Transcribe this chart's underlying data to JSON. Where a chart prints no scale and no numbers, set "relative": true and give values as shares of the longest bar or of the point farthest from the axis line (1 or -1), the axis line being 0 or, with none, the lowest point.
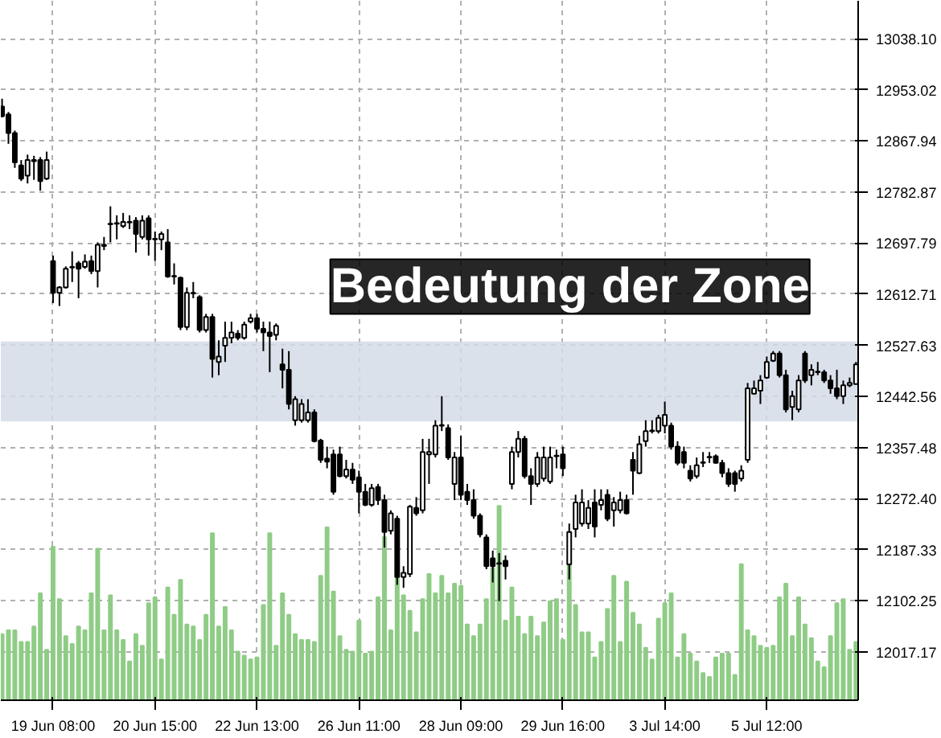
{
  "chart_data": [
    {
      "type": "candlestick",
      "categories": [
        null,
        null,
        null,
        null,
        null,
        null,
        null,
        null,
        "19 Jun 08:00",
        null,
        null,
        null,
        null,
        null,
        null,
        null,
        null,
        null,
        null,
        null,
        null,
        null,
        null,
        null,
        "20 Jun 15:00",
        null,
        null,
        null,
        null,
        null,
        null,
        null,
        null,
        null,
        null,
        null,
        null,
        null,
        null,
        null,
        "22 Jun 13:00",
        null,
        null,
        null,
        null,
        null,
        null,
        null,
        null,
        null,
        null,
        null,
        null,
        null,
        null,
        null,
        "26 Jun 11:00",
        null,
        null,
        null,
        null,
        null,
        null,
        null,
        null,
        null,
        null,
        null,
        null,
        null,
        null,
        null,
        "28 Jun 09:00",
        null,
        null,
        null,
        null,
        null,
        null,
        null,
        null,
        null,
        null,
        null,
        null,
        null,
        null,
        null,
        "29 Jun 16:00",
        null,
        null,
        null,
        null,
        null,
        null,
        null,
        null,
        null,
        null,
        null,
        null,
        null,
        null,
        null,
        "3 Jul 14:00",
        null,
        null,
        null,
        null,
        null,
        null,
        null,
        null,
        null,
        null,
        null,
        null,
        null,
        null,
        null,
        "5 Jul 12:00",
        null,
        null,
        null,
        null,
        null,
        null,
        null,
        null,
        null,
        null,
        null,
        null,
        null,
        null
      ],
      "ohlc": [
        [
          12925,
          12938,
          12907,
          12909
        ],
        [
          12912,
          12916,
          12863,
          12881
        ],
        [
          12881,
          12885,
          12823,
          12832
        ],
        [
          12827,
          12836,
          12801,
          12805
        ],
        [
          12810,
          12845,
          12797,
          12836
        ],
        [
          12834,
          12843,
          12803,
          12836
        ],
        [
          12836,
          12841,
          12785,
          12801
        ],
        [
          12805,
          12850,
          12803,
          12836
        ],
        [
          12668,
          12677,
          12598,
          12615
        ],
        [
          12615,
          12626,
          12593,
          12624
        ],
        [
          12624,
          12659,
          12622,
          12655
        ],
        [
          12657,
          12684,
          12633,
          12658
        ],
        [
          12664,
          12668,
          12606,
          12655
        ],
        [
          12658,
          12679,
          12655,
          12667
        ],
        [
          12668,
          12677,
          12646,
          12651
        ],
        [
          12651,
          12699,
          12624,
          12695
        ],
        [
          12695,
          12708,
          12686,
          12693
        ],
        [
          12729,
          12759,
          12699,
          12730
        ],
        [
          12730,
          12744,
          12704,
          12731
        ],
        [
          12726,
          12748,
          12723,
          12733
        ],
        [
          12733,
          12744,
          12721,
          12732
        ],
        [
          12735,
          12741,
          12682,
          12713
        ],
        [
          12708,
          12744,
          12704,
          12735
        ],
        [
          12739,
          12744,
          12677,
          12704
        ],
        [
          12704,
          12717,
          12668,
          12705
        ],
        [
          12704,
          12717,
          12686,
          12713
        ],
        [
          12699,
          12721,
          12640,
          12642
        ],
        [
          12642,
          12664,
          12629,
          12643
        ],
        [
          12640,
          12642,
          12553,
          12558
        ],
        [
          12558,
          12624,
          12553,
          12615
        ],
        [
          12615,
          12633,
          12606,
          12614
        ],
        [
          12608,
          12611,
          12549,
          12553
        ],
        [
          12553,
          12580,
          12549,
          12575
        ],
        [
          12575,
          12580,
          12474,
          12505
        ],
        [
          12500,
          12536,
          12478,
          12509
        ],
        [
          12527,
          12567,
          12500,
          12540
        ],
        [
          12540,
          12567,
          12531,
          12549
        ],
        [
          12547,
          12553,
          12536,
          12540
        ],
        [
          12540,
          12567,
          12537,
          12562
        ],
        [
          12567,
          12580,
          12564,
          12573
        ],
        [
          12573,
          12580,
          12549,
          12555
        ],
        [
          12555,
          12567,
          12518,
          12549
        ],
        [
          12549,
          12567,
          12483,
          12543
        ],
        [
          12545,
          12564,
          12536,
          12560
        ],
        [
          12496,
          12522,
          12456,
          12487
        ],
        [
          12487,
          12518,
          12421,
          12430
        ],
        [
          12403,
          12443,
          12394,
          12438
        ],
        [
          12403,
          12438,
          12399,
          12430
        ],
        [
          12403,
          12438,
          12399,
          12416
        ],
        [
          12416,
          12421,
          12366,
          12368
        ],
        [
          12369,
          12372,
          12332,
          12337
        ],
        [
          12339,
          12359,
          12323,
          12334
        ],
        [
          12346,
          12354,
          12279,
          12284
        ],
        [
          12346,
          12359,
          12308,
          12310
        ],
        [
          12310,
          12337,
          12306,
          12321
        ],
        [
          12321,
          12332,
          12297,
          12304
        ],
        [
          12308,
          12319,
          12248,
          12284
        ],
        [
          12284,
          12297,
          12260,
          12262
        ],
        [
          12262,
          12297,
          12259,
          12290
        ],
        [
          12292,
          12297,
          12262,
          12270
        ],
        [
          12270,
          12279,
          12191,
          12217
        ],
        [
          12219,
          12253,
          12213,
          12248
        ],
        [
          12239,
          12244,
          12129,
          12142
        ],
        [
          12142,
          12160,
          12124,
          12149
        ],
        [
          12147,
          12262,
          12142,
          12259
        ],
        [
          12257,
          12275,
          12244,
          12248
        ],
        [
          12253,
          12372,
          12248,
          12350
        ],
        [
          12346,
          12372,
          12297,
          12350
        ],
        [
          12346,
          12403,
          12341,
          12394
        ],
        [
          12394,
          12443,
          12385,
          12395
        ],
        [
          12390,
          12396,
          12337,
          12341
        ],
        [
          12297,
          12350,
          12270,
          12341
        ],
        [
          12341,
          12377,
          12270,
          12279
        ],
        [
          12284,
          12297,
          12262,
          12270
        ],
        [
          12270,
          12288,
          12239,
          12244
        ],
        [
          12244,
          12248,
          12208,
          12213
        ],
        [
          12208,
          12213,
          12155,
          12160
        ],
        [
          12173,
          12186,
          12133,
          12160
        ],
        [
          12164,
          12182,
          12102,
          12165
        ],
        [
          12169,
          12178,
          12138,
          12160
        ],
        [
          12297,
          12359,
          12288,
          12350
        ],
        [
          12350,
          12385,
          12341,
          12372
        ],
        [
          12372,
          12377,
          12306,
          12310
        ],
        [
          12310,
          12323,
          12262,
          12297
        ],
        [
          12297,
          12350,
          12292,
          12341
        ],
        [
          12306,
          12359,
          12301,
          12341
        ],
        [
          12301,
          12359,
          12297,
          12341
        ],
        [
          12343,
          12354,
          12323,
          12344
        ],
        [
          12346,
          12359,
          12310,
          12323
        ],
        [
          12163,
          12231,
          12138,
          12217
        ],
        [
          12222,
          12279,
          12208,
          12266
        ],
        [
          12231,
          12288,
          12226,
          12266
        ],
        [
          12231,
          12270,
          12222,
          12257
        ],
        [
          12266,
          12288,
          12208,
          12226
        ],
        [
          12262,
          12288,
          12253,
          12270
        ],
        [
          12279,
          12288,
          12235,
          12239
        ],
        [
          12253,
          12275,
          12226,
          12266
        ],
        [
          12253,
          12284,
          12248,
          12270
        ],
        [
          12270,
          12279,
          12246,
          12248
        ],
        [
          12337,
          12350,
          12279,
          12319
        ],
        [
          12315,
          12377,
          12313,
          12363
        ],
        [
          12368,
          12403,
          12359,
          12385
        ],
        [
          12385,
          12403,
          12381,
          12386
        ],
        [
          12385,
          12412,
          12381,
          12407
        ],
        [
          12394,
          12434,
          12381,
          12412
        ],
        [
          12394,
          12399,
          12354,
          12359
        ],
        [
          12359,
          12368,
          12328,
          12332
        ],
        [
          12350,
          12359,
          12323,
          12332
        ],
        [
          12319,
          12328,
          12301,
          12306
        ],
        [
          12310,
          12341,
          12306,
          12328
        ],
        [
          12332,
          12350,
          12325,
          12333
        ],
        [
          12341,
          12350,
          12332,
          12342
        ],
        [
          12343,
          12346,
          12331,
          12332
        ],
        [
          12332,
          12337,
          12308,
          12315
        ],
        [
          12315,
          12323,
          12292,
          12297
        ],
        [
          12315,
          12319,
          12284,
          12297
        ],
        [
          12306,
          12328,
          12301,
          12319
        ],
        [
          12337,
          12465,
          12332,
          12456
        ],
        [
          12447,
          12469,
          12446,
          12456
        ],
        [
          12452,
          12478,
          12430,
          12469
        ],
        [
          12474,
          12509,
          12472,
          12500
        ],
        [
          12502,
          12518,
          12500,
          12514
        ],
        [
          12514,
          12518,
          12474,
          12478
        ],
        [
          12478,
          12487,
          12416,
          12421
        ],
        [
          12425,
          12452,
          12403,
          12443
        ],
        [
          12421,
          12478,
          12416,
          12469
        ],
        [
          12514,
          12518,
          12465,
          12469
        ],
        [
          12478,
          12496,
          12461,
          12487
        ],
        [
          12483,
          12500,
          12478,
          12484
        ],
        [
          12483,
          12487,
          12465,
          12469
        ],
        [
          12469,
          12478,
          12447,
          12456
        ],
        [
          12456,
          12487,
          12438,
          12443
        ],
        [
          12443,
          12469,
          12430,
          12461
        ],
        [
          12461,
          12474,
          12458,
          12465
        ],
        [
          12463,
          12500,
          12463,
          12496
        ]
      ],
      "color": "#000000",
      "ylim": [
        11937,
        13101
      ],
      "yticks": [
        {
          "value": 13038.1,
          "label": "13038.10"
        },
        12953.02,
        12867.94,
        12782.87,
        12697.79,
        12612.71,
        12527.63,
        12442.56,
        12357.48,
        {
          "value": 12272.4,
          "label": "12272.40"
        },
        12187.33,
        12102.25,
        12017.17
      ],
      "grid": true,
      "bands": [
        {
          "axis": "y",
          "from": 12401,
          "to": 12534,
          "color": "#d3dce8"
        }
      ],
      "annotations": [
        "Bedeutung der Zone"
      ]
    },
    {
      "type": "bar",
      "relative": true,
      "color": "#8fcc86",
      "categories": [
        null,
        null,
        null,
        null,
        null,
        null,
        null,
        null,
        null,
        null,
        null,
        null,
        null,
        null,
        null,
        null,
        null,
        null,
        null,
        null,
        null,
        null,
        null,
        null,
        null,
        null,
        null,
        null,
        null,
        null,
        null,
        null,
        null,
        null,
        null,
        null,
        null,
        null,
        null,
        null,
        null,
        null,
        null,
        null,
        null,
        null,
        null,
        null,
        null,
        null,
        null,
        null,
        null,
        null,
        null,
        null,
        null,
        null,
        null,
        null,
        null,
        null,
        null,
        null,
        null,
        null,
        null,
        null,
        null,
        null,
        null,
        null,
        null,
        null,
        null,
        null,
        null,
        null,
        null,
        null,
        null,
        null,
        null,
        null,
        null,
        null,
        null,
        null,
        null,
        null,
        null,
        null,
        null,
        null,
        null,
        null,
        null,
        null,
        null,
        null,
        null,
        null,
        null,
        null,
        null,
        null,
        null,
        null,
        null,
        null,
        null,
        null,
        null,
        null,
        null,
        null,
        null,
        null,
        null,
        null,
        null,
        null,
        null,
        null,
        null,
        null,
        null,
        null,
        null,
        null,
        null,
        null,
        null,
        null,
        null
      ],
      "values": [
        0.34,
        0.36,
        0.36,
        0.3,
        0.3,
        0.38,
        0.55,
        0.26,
        0.79,
        0.52,
        0.33,
        0.29,
        0.38,
        0.36,
        0.55,
        0.78,
        0.36,
        0.54,
        0.36,
        0.31,
        0.2,
        0.34,
        0.28,
        0.5,
        0.53,
        0.21,
        0.58,
        0.44,
        0.62,
        0.39,
        0.38,
        0.31,
        0.44,
        0.86,
        0.38,
        0.48,
        0.36,
        0.25,
        0.23,
        0.21,
        0.22,
        0.49,
        0.86,
        0.28,
        0.55,
        0.44,
        0.34,
        0.31,
        0.31,
        0.3,
        0.64,
        0.89,
        0.56,
        0.33,
        0.26,
        0.25,
        0.41,
        0.24,
        0.25,
        0.53,
        0.84,
        0.36,
        0.71,
        0.54,
        0.46,
        0.35,
        0.52,
        0.65,
        0.55,
        0.64,
        0.55,
        0.6,
        0.59,
        0.39,
        0.33,
        0.39,
        0.52,
        0.68,
        1,
        0.41,
        0.58,
        0.43,
        0.34,
        0.43,
        0.33,
        0.4,
        0.51,
        0.52,
        0.31,
        0.72,
        0.49,
        0.35,
        0.35,
        0.22,
        0.3,
        0.47,
        0.64,
        0.3,
        0.61,
        0.45,
        0.39,
        0.27,
        0.21,
        0.42,
        0.5,
        0.55,
        0.22,
        0.34,
        0.24,
        0.2,
        0.14,
        0.12,
        0.22,
        0.24,
        0.24,
        0.13,
        0.7,
        0.36,
        0.33,
        0.28,
        0.27,
        0.28,
        0.53,
        0.6,
        0.33,
        0.53,
        0.39,
        0.32,
        0.2,
        0.17,
        0.33,
        0.5,
        0.52,
        0.26,
        0.3
      ]
    }
  ]
}
